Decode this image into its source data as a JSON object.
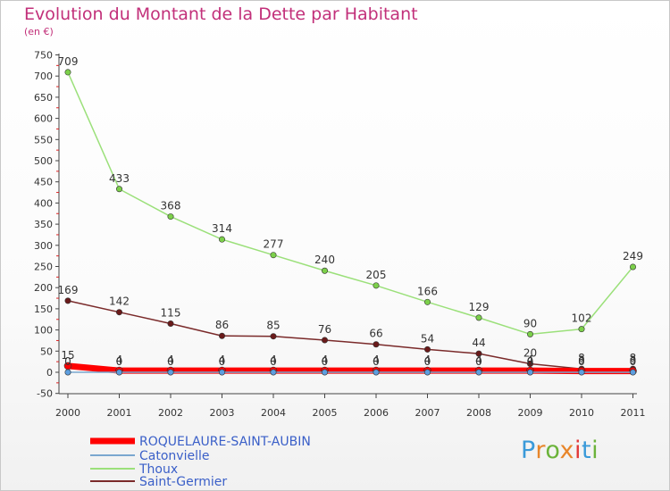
{
  "title": "Evolution du Montant de la Dette par Habitant",
  "subtitle": "(en €)",
  "logo": {
    "text": "Proxiti",
    "letter_colors": [
      "#3a9ad9",
      "#e8862a",
      "#6bb33a",
      "#e8862a",
      "#e23a3a",
      "#3a9ad9",
      "#6bb33a"
    ]
  },
  "chart_data": {
    "type": "line",
    "title": "Evolution du Montant de la Dette par Habitant",
    "ylabel": "(en €)",
    "xlabel": "",
    "x": [
      "2000",
      "2001",
      "2002",
      "2003",
      "2004",
      "2005",
      "2006",
      "2007",
      "2008",
      "2009",
      "2010",
      "2011"
    ],
    "ylim": [
      -50,
      750
    ],
    "yticks": [
      -50,
      0,
      50,
      100,
      150,
      200,
      250,
      300,
      350,
      400,
      450,
      500,
      550,
      600,
      650,
      700,
      750
    ],
    "grid": false,
    "legend_position": "bottom-left",
    "series": [
      {
        "name": "ROQUELAURE-SAINT-AUBIN",
        "color": "#ff0000",
        "marker_color": "#ff0000",
        "line_style": "thick",
        "values": [
          15,
          4,
          4,
          4,
          4,
          4,
          4,
          4,
          4,
          4,
          3,
          3
        ],
        "labels": [
          "15",
          "4",
          "4",
          "4",
          "4",
          "4",
          "4",
          "4",
          "4",
          "4",
          "3",
          "3"
        ]
      },
      {
        "name": "Catonvielle",
        "color": "#7aa7cf",
        "marker_color": "#5d9ee0",
        "line_style": "thin",
        "values": [
          0,
          0,
          0,
          0,
          0,
          0,
          0,
          0,
          0,
          0,
          0,
          0
        ],
        "labels": [
          "0",
          "0",
          "0",
          "0",
          "0",
          "0",
          "0",
          "0",
          "0",
          "0",
          "0",
          "0"
        ]
      },
      {
        "name": "Thoux",
        "color": "#9be07a",
        "marker_color": "#7cd04a",
        "line_style": "thin",
        "values": [
          709,
          433,
          368,
          314,
          277,
          240,
          205,
          166,
          129,
          90,
          102,
          249
        ],
        "labels": [
          "709",
          "433",
          "368",
          "314",
          "277",
          "240",
          "205",
          "166",
          "129",
          "90",
          "102",
          "249"
        ]
      },
      {
        "name": "Saint-Germier",
        "color": "#7a2a2a",
        "marker_color": "#6a1a1a",
        "line_style": "thin",
        "values": [
          169,
          142,
          115,
          86,
          85,
          76,
          66,
          54,
          44,
          20,
          8,
          8
        ],
        "labels": [
          "169",
          "142",
          "115",
          "86",
          "85",
          "76",
          "66",
          "54",
          "44",
          "20",
          "8",
          "8"
        ]
      }
    ]
  }
}
